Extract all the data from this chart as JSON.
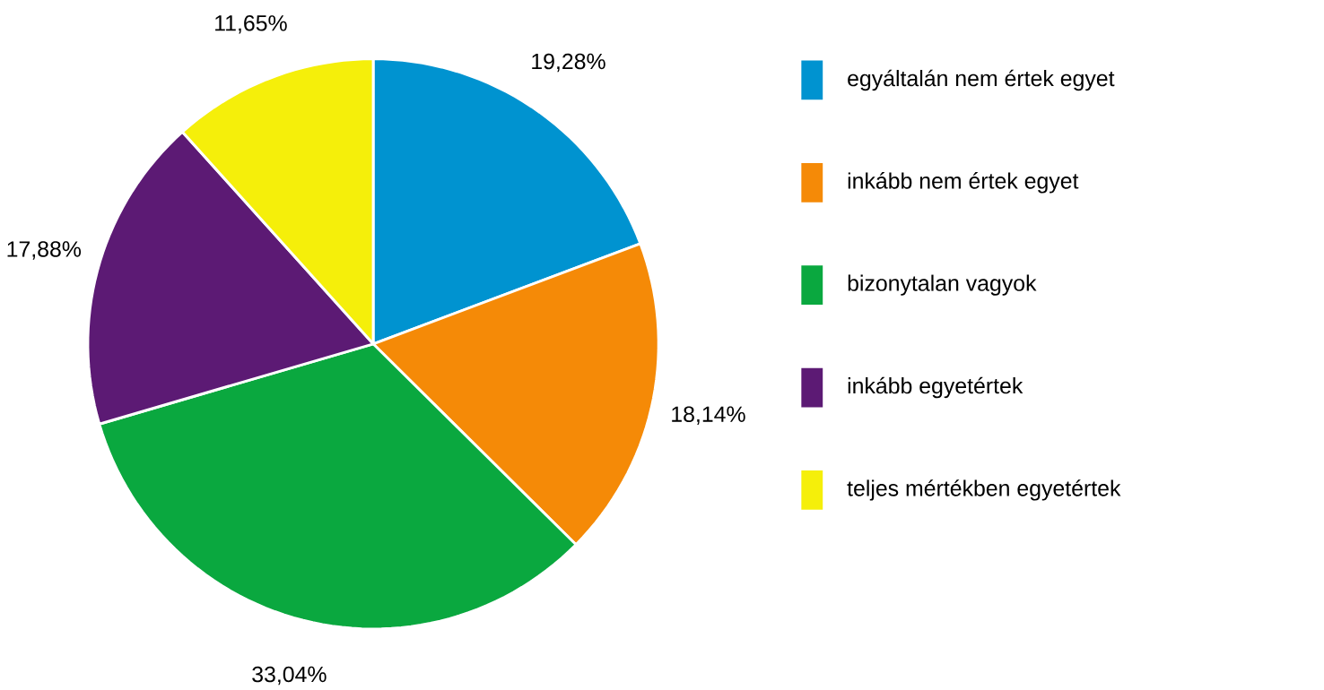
{
  "chart_data": {
    "type": "pie",
    "categories": [
      "egyáltalán nem értek egyet",
      "inkább nem értek egyet",
      "bizonytalan vagyok",
      "inkább egyetértek",
      "teljes mértékben egyetértek"
    ],
    "values": [
      19.28,
      18.14,
      33.04,
      17.88,
      11.65
    ],
    "value_labels": [
      "19,28%",
      "18,14%",
      "33,04%",
      "17,88%",
      "11,65%"
    ],
    "colors": [
      "#0093d0",
      "#f58a07",
      "#0aa83f",
      "#5c1a74",
      "#f5ef0a"
    ],
    "legend": "right"
  }
}
